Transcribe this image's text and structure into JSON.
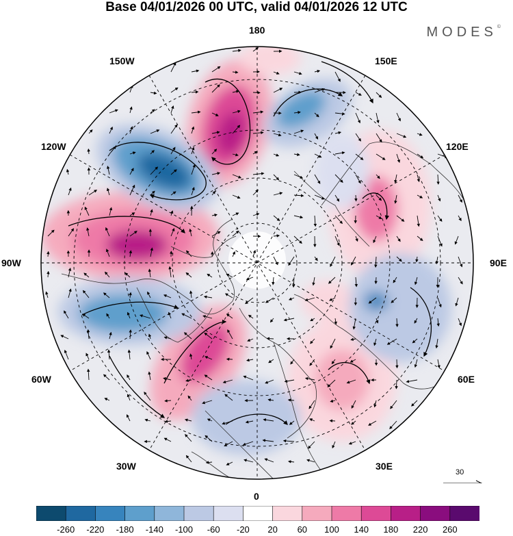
{
  "title": "Base 04/01/2026 00 UTC, valid 04/01/2026 12 UTC",
  "brand": "MODES",
  "brand_mark": "©",
  "longitude_labels": {
    "top": "180",
    "top_left": "150W",
    "top_right": "150E",
    "upper_left": "120W",
    "upper_right": "120E",
    "left": "90W",
    "right": "90E",
    "lower_left": "60W",
    "lower_right": "60E",
    "bottom_left": "30W",
    "bottom_right": "30E",
    "bottom": "0"
  },
  "wind_reference": {
    "value": "30"
  },
  "colorbar": {
    "ticks": [
      "-260",
      "-220",
      "-180",
      "-140",
      "-100",
      "-60",
      "-20",
      "20",
      "60",
      "100",
      "140",
      "180",
      "220",
      "260"
    ],
    "colors": [
      "#0d4a6e",
      "#1f68a0",
      "#3784bd",
      "#5e9fcc",
      "#8fb6da",
      "#bcc9e4",
      "#dcdff0",
      "#ffffff",
      "#fad7de",
      "#f5aabd",
      "#ee7aa7",
      "#dd4a96",
      "#b81f87",
      "#8a0d7e",
      "#5a0a6e"
    ]
  }
}
